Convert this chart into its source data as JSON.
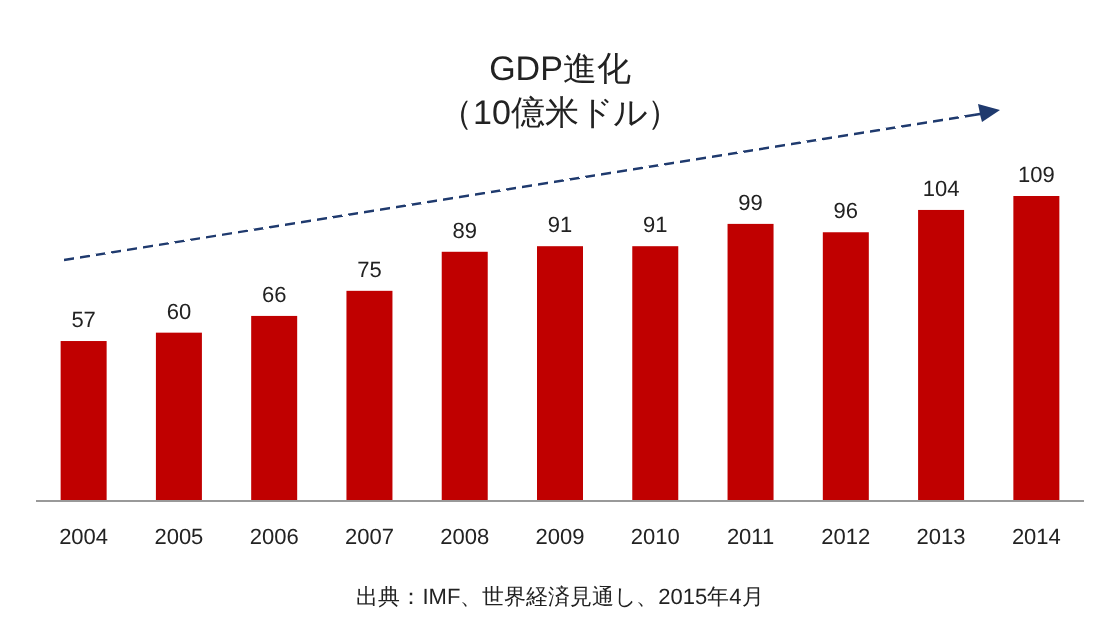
{
  "chart_data": {
    "type": "bar",
    "title": "GDP進化",
    "subtitle": "（10億米ドル）",
    "categories": [
      "2004",
      "2005",
      "2006",
      "2007",
      "2008",
      "2009",
      "2010",
      "2011",
      "2012",
      "2013",
      "2014"
    ],
    "values": [
      57,
      60,
      66,
      75,
      89,
      91,
      91,
      99,
      96,
      104,
      109
    ],
    "color": "#c00000",
    "data_labels": true,
    "annotations": [
      "出典：IMF、世界経済見通し、2015年4月"
    ]
  }
}
